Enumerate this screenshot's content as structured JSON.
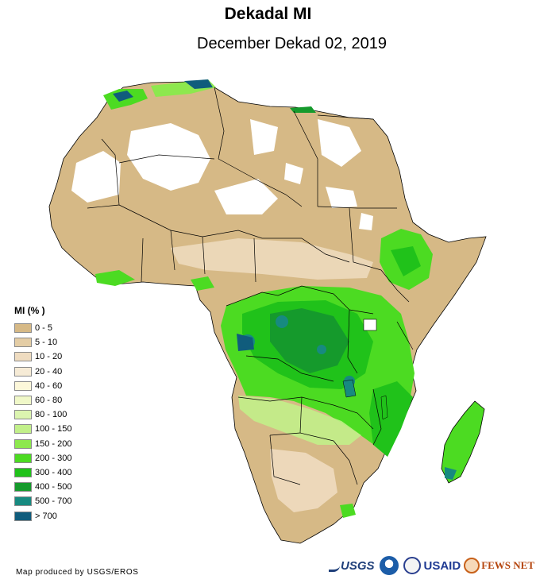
{
  "title": "Dekadal MI",
  "subtitle": "December Dekad 02, 2019",
  "legend": {
    "title": "MI (% )",
    "items": [
      {
        "label": "0 - 5",
        "color": "#d6b986"
      },
      {
        "label": "5 - 10",
        "color": "#e4cda5"
      },
      {
        "label": "10 - 20",
        "color": "#efdcc0"
      },
      {
        "label": "20 - 40",
        "color": "#f6ebd6"
      },
      {
        "label": "40 - 60",
        "color": "#fdf8da"
      },
      {
        "label": "60 - 80",
        "color": "#f0f8c8"
      },
      {
        "label": "80 - 100",
        "color": "#dcf5b0"
      },
      {
        "label": "100 - 150",
        "color": "#c2f08a"
      },
      {
        "label": "150 - 200",
        "color": "#8de84e"
      },
      {
        "label": "200 - 300",
        "color": "#4cdb22"
      },
      {
        "label": "300 - 400",
        "color": "#20c21a"
      },
      {
        "label": "400 - 500",
        "color": "#159a2c"
      },
      {
        "label": "500 - 700",
        "color": "#178a80"
      },
      {
        "label": "> 700",
        "color": "#105c7c"
      }
    ]
  },
  "credit": "Map produced by USGS/EROS",
  "logos": {
    "usgs": "USGS",
    "usaid": "USAID",
    "fews": "FEWS NET"
  }
}
